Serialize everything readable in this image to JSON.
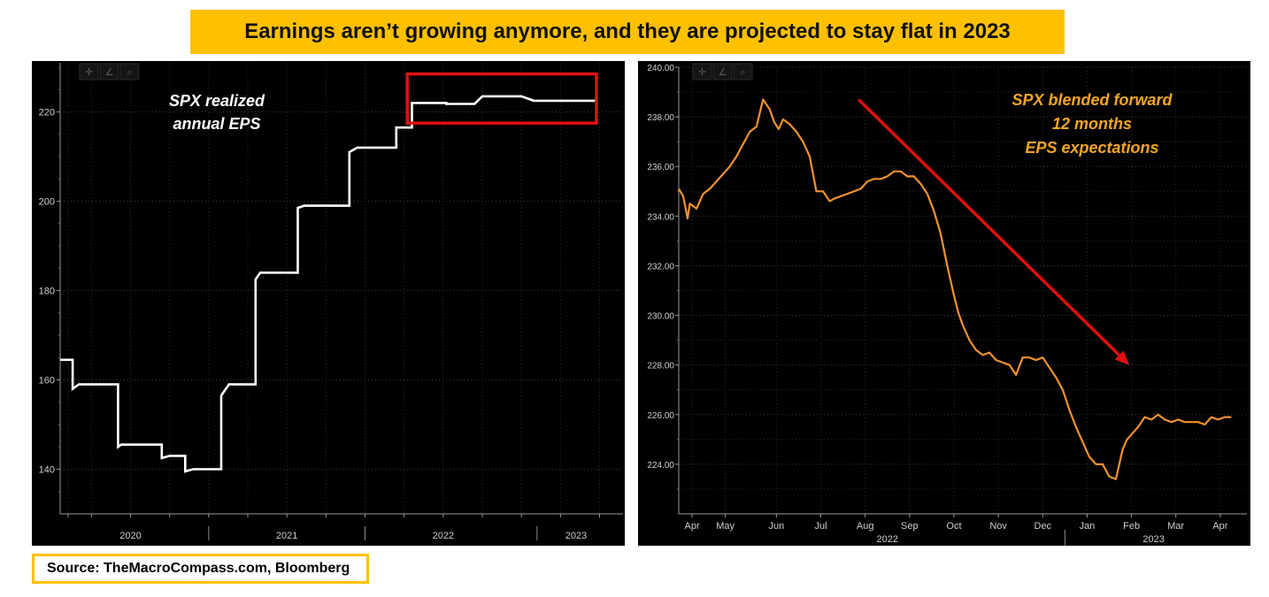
{
  "title": "Earnings aren’t growing anymore, and they are projected to stay flat in 2023",
  "source": "Source: TheMacroCompass.com, Bloomberg",
  "colors": {
    "banner": "#FFC000",
    "left_line": "#ffffff",
    "right_line": "#F0922E",
    "annotation": "#F5A623",
    "highlight_box": "#E01010",
    "arrow": "#E01010"
  },
  "chart_data": [
    {
      "type": "line",
      "title": "",
      "annotation_lines": [
        "SPX realized",
        "annual EPS"
      ],
      "ylim": [
        130,
        231
      ],
      "yticks": [
        140,
        160,
        180,
        200,
        220
      ],
      "xlim": [
        2019.55,
        2023.15
      ],
      "x_period_labels": [
        {
          "label": "2020",
          "x": 2020.0
        },
        {
          "label": "2021",
          "x": 2021.0
        },
        {
          "label": "2022",
          "x": 2022.0
        },
        {
          "label": "2023",
          "x": 2022.85
        }
      ],
      "x_separators": [
        2020.5,
        2021.5,
        2022.6
      ],
      "x_minor_ticks": [
        2019.6,
        2019.75,
        2020.0,
        2020.25,
        2020.5,
        2020.75,
        2021.0,
        2021.25,
        2021.5,
        2021.75,
        2022.0,
        2022.25,
        2022.5,
        2022.75,
        2023.0
      ],
      "series": [
        {
          "name": "SPX realized annual EPS",
          "x": [
            2019.55,
            2019.63,
            2019.63,
            2019.65,
            2019.67,
            2019.92,
            2019.92,
            2019.94,
            2020.2,
            2020.2,
            2020.25,
            2020.35,
            2020.35,
            2020.4,
            2020.58,
            2020.58,
            2020.63,
            2020.8,
            2020.8,
            2020.83,
            2020.86,
            2021.07,
            2021.07,
            2021.11,
            2021.4,
            2021.4,
            2021.45,
            2021.6,
            2021.7,
            2021.7,
            2021.76,
            2021.8,
            2021.8,
            2022.02,
            2022.02,
            2022.2,
            2022.25,
            2022.25,
            2022.5,
            2022.58,
            2022.6,
            2022.98
          ],
          "values": [
            164.5,
            164.5,
            158,
            158.5,
            159,
            159,
            145,
            145.5,
            145.5,
            142.5,
            143,
            143,
            139.5,
            140,
            140,
            156.5,
            159,
            159,
            182.5,
            184,
            184,
            184,
            198.5,
            199,
            199,
            211,
            212,
            212,
            212,
            216.5,
            216.5,
            216.5,
            222,
            222,
            221.8,
            221.8,
            223.5,
            223.5,
            223.5,
            222.5,
            222.5,
            222.5
          ]
        }
      ],
      "highlight_rect": {
        "x0": 2021.77,
        "x1": 2022.98,
        "y0": 217.5,
        "y1": 228.5
      }
    },
    {
      "type": "line",
      "title": "",
      "annotation_lines": [
        "SPX blended forward",
        "12 months",
        "EPS expectations"
      ],
      "ylim": [
        222.0,
        240.0
      ],
      "yticks": [
        224.0,
        226.0,
        228.0,
        230.0,
        232.0,
        234.0,
        236.0,
        238.0,
        240.0
      ],
      "ytick_labels": [
        "224.00",
        "226.00",
        "228.00",
        "230.00",
        "232.00",
        "234.00",
        "236.00",
        "238.00",
        "240.00"
      ],
      "xlim": [
        -0.2,
        12.6
      ],
      "x_tick_labels": [
        {
          "label": "Apr",
          "x": 0.1
        },
        {
          "label": "May",
          "x": 0.85
        },
        {
          "label": "Jun",
          "x": 2.0
        },
        {
          "label": "Jul",
          "x": 3.0
        },
        {
          "label": "Aug",
          "x": 4.0
        },
        {
          "label": "Sep",
          "x": 5.0
        },
        {
          "label": "Oct",
          "x": 6.0
        },
        {
          "label": "Nov",
          "x": 7.0
        },
        {
          "label": "Dec",
          "x": 8.0
        },
        {
          "label": "Jan",
          "x": 9.0
        },
        {
          "label": "Feb",
          "x": 10.0
        },
        {
          "label": "Mar",
          "x": 11.0
        },
        {
          "label": "Apr",
          "x": 12.0
        }
      ],
      "x_year_labels": [
        {
          "label": "2022",
          "x": 4.5
        },
        {
          "label": "2023",
          "x": 10.5
        }
      ],
      "x_separators": [
        8.5
      ],
      "series": [
        {
          "name": "SPX blended forward 12 months EPS expectations",
          "x": [
            -0.2,
            -0.1,
            0.0,
            0.05,
            0.2,
            0.35,
            0.5,
            0.65,
            0.8,
            0.95,
            1.1,
            1.25,
            1.4,
            1.55,
            1.7,
            1.85,
            1.95,
            2.05,
            2.15,
            2.3,
            2.45,
            2.6,
            2.75,
            2.9,
            3.05,
            3.2,
            3.3,
            3.45,
            3.6,
            3.75,
            3.9,
            4.05,
            4.2,
            4.35,
            4.5,
            4.65,
            4.8,
            4.95,
            5.1,
            5.25,
            5.4,
            5.55,
            5.7,
            5.85,
            6.0,
            6.1,
            6.2,
            6.35,
            6.5,
            6.65,
            6.8,
            6.95,
            7.1,
            7.25,
            7.4,
            7.55,
            7.7,
            7.85,
            8.0,
            8.15,
            8.3,
            8.45,
            8.6,
            8.75,
            8.9,
            9.05,
            9.2,
            9.35,
            9.5,
            9.65,
            9.8,
            9.9,
            10.0,
            10.15,
            10.3,
            10.45,
            10.6,
            10.75,
            10.9,
            11.05,
            11.2,
            11.35,
            11.5,
            11.65,
            11.8,
            11.95,
            12.1,
            12.25
          ],
          "values": [
            235.1,
            234.8,
            233.9,
            234.5,
            234.3,
            234.9,
            235.1,
            235.4,
            235.7,
            236.0,
            236.4,
            236.9,
            237.4,
            237.6,
            238.7,
            238.3,
            237.8,
            237.5,
            237.9,
            237.7,
            237.4,
            237.0,
            236.4,
            235.0,
            235.0,
            234.6,
            234.7,
            234.8,
            234.9,
            235.0,
            235.1,
            235.4,
            235.5,
            235.5,
            235.6,
            235.8,
            235.8,
            235.6,
            235.6,
            235.3,
            234.9,
            234.2,
            233.3,
            232.0,
            230.8,
            230.1,
            229.6,
            229.0,
            228.6,
            228.4,
            228.5,
            228.2,
            228.1,
            228.0,
            227.6,
            228.3,
            228.3,
            228.2,
            228.3,
            227.9,
            227.5,
            227.0,
            226.2,
            225.5,
            224.9,
            224.3,
            224.0,
            224.0,
            223.5,
            223.4,
            224.6,
            225.0,
            225.2,
            225.5,
            225.9,
            225.8,
            226.0,
            225.8,
            225.7,
            225.8,
            225.7,
            225.7,
            225.7,
            225.6,
            225.9,
            225.8,
            225.9,
            225.9
          ]
        }
      ],
      "arrow": {
        "from": [
          3.85,
          238.7
        ],
        "to": [
          9.95,
          228.0
        ]
      }
    }
  ]
}
